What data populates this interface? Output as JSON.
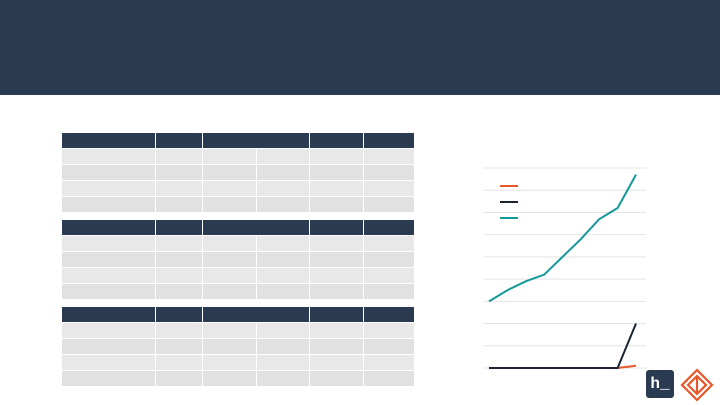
{
  "slide": {
    "title": ""
  },
  "tables": [
    {
      "header": [
        "",
        "",
        "",
        "",
        "",
        ""
      ],
      "rows": [
        [
          "",
          "",
          "",
          "",
          "",
          "",
          ""
        ],
        [
          "",
          "",
          "",
          "",
          "",
          "",
          ""
        ],
        [
          "",
          "",
          "",
          "",
          "",
          "",
          ""
        ],
        [
          "",
          "",
          "",
          "",
          "",
          "",
          ""
        ]
      ]
    },
    {
      "header": [
        "",
        "",
        "",
        "",
        "",
        ""
      ],
      "rows": [
        [
          "",
          "",
          "",
          "",
          "",
          "",
          ""
        ],
        [
          "",
          "",
          "",
          "",
          "",
          "",
          ""
        ],
        [
          "",
          "",
          "",
          "",
          "",
          "",
          ""
        ],
        [
          "",
          "",
          "",
          "",
          "",
          "",
          ""
        ]
      ]
    },
    {
      "header": [
        "",
        "",
        "",
        "",
        "",
        ""
      ],
      "rows": [
        [
          "",
          "",
          "",
          "",
          "",
          "",
          ""
        ],
        [
          "",
          "",
          "",
          "",
          "",
          "",
          ""
        ],
        [
          "",
          "",
          "",
          "",
          "",
          "",
          ""
        ],
        [
          "",
          "",
          "",
          "",
          "",
          "",
          ""
        ]
      ]
    }
  ],
  "colors": {
    "header_bg": "#2a3a51",
    "row_bg": "#e8e8e8",
    "series": [
      "#e8572a",
      "#1c2433",
      "#13999a"
    ]
  },
  "chart_data": {
    "type": "line",
    "title": "",
    "xlabel": "",
    "ylabel": "",
    "x": [
      0,
      1,
      2,
      3,
      4,
      5,
      6,
      7,
      8
    ],
    "ylim": [
      0,
      9
    ],
    "grid": true,
    "legend": "top-left",
    "series": [
      {
        "color": "#e8572a",
        "values": [
          0,
          0,
          0,
          0,
          0,
          0,
          0,
          0,
          0.1
        ]
      },
      {
        "color": "#1c2433",
        "values": [
          0,
          0,
          0,
          0,
          0,
          0,
          0,
          0,
          2.0
        ]
      },
      {
        "color": "#13999a",
        "values": [
          3.0,
          3.5,
          3.9,
          4.2,
          5.0,
          5.8,
          6.7,
          7.2,
          8.7
        ]
      }
    ]
  },
  "logos": {
    "badge_text": "h_",
    "mark_name": "brand-mark"
  }
}
